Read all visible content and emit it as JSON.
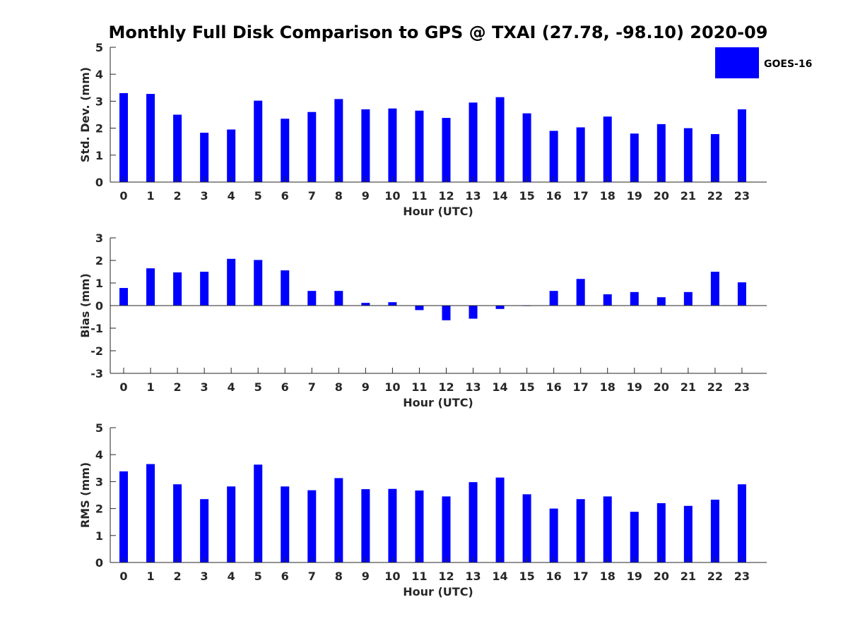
{
  "title": "Monthly Full Disk Comparison to GPS @ TXAI (27.78, -98.10) 2020-09",
  "legend": {
    "label": "GOES-16",
    "color": "#0000ff",
    "placement": "top-right"
  },
  "chart_data": [
    {
      "type": "bar",
      "xlabel": "Hour (UTC)",
      "ylabel": "Std. Dev. (mm)",
      "ylim": [
        0,
        5
      ],
      "yticks": [
        "0",
        "1",
        "2",
        "3",
        "4",
        "5"
      ],
      "categories": [
        "0",
        "1",
        "2",
        "3",
        "4",
        "5",
        "6",
        "7",
        "8",
        "9",
        "10",
        "11",
        "12",
        "13",
        "14",
        "15",
        "16",
        "17",
        "18",
        "19",
        "20",
        "21",
        "22",
        "23"
      ],
      "series": [
        {
          "name": "GOES-16",
          "color": "#0000ff",
          "values": [
            3.3,
            3.27,
            2.5,
            1.83,
            1.95,
            3.02,
            2.35,
            2.6,
            3.08,
            2.7,
            2.73,
            2.65,
            2.38,
            2.95,
            3.15,
            2.55,
            1.9,
            2.03,
            2.43,
            1.8,
            2.15,
            2.0,
            1.78,
            2.7
          ]
        }
      ]
    },
    {
      "type": "bar",
      "xlabel": "Hour (UTC)",
      "ylabel": "Bias (mm)",
      "ylim": [
        -3,
        3
      ],
      "yticks": [
        "-3",
        "-2",
        "-1",
        "0",
        "1",
        "2",
        "3"
      ],
      "categories": [
        "0",
        "1",
        "2",
        "3",
        "4",
        "5",
        "6",
        "7",
        "8",
        "9",
        "10",
        "11",
        "12",
        "13",
        "14",
        "15",
        "16",
        "17",
        "18",
        "19",
        "20",
        "21",
        "22",
        "23"
      ],
      "series": [
        {
          "name": "GOES-16",
          "color": "#0000ff",
          "values": [
            0.78,
            1.65,
            1.47,
            1.5,
            2.07,
            2.02,
            1.56,
            0.65,
            0.65,
            0.12,
            0.15,
            -0.2,
            -0.65,
            -0.58,
            -0.15,
            -0.02,
            0.65,
            1.18,
            0.5,
            0.6,
            0.37,
            0.6,
            1.5,
            1.03
          ]
        }
      ]
    },
    {
      "type": "bar",
      "xlabel": "Hour (UTC)",
      "ylabel": "RMS (mm)",
      "ylim": [
        0,
        5
      ],
      "yticks": [
        "0",
        "1",
        "2",
        "3",
        "4",
        "5"
      ],
      "categories": [
        "0",
        "1",
        "2",
        "3",
        "4",
        "5",
        "6",
        "7",
        "8",
        "9",
        "10",
        "11",
        "12",
        "13",
        "14",
        "15",
        "16",
        "17",
        "18",
        "19",
        "20",
        "21",
        "22",
        "23"
      ],
      "series": [
        {
          "name": "GOES-16",
          "color": "#0000ff",
          "values": [
            3.38,
            3.65,
            2.9,
            2.35,
            2.82,
            3.63,
            2.82,
            2.68,
            3.13,
            2.72,
            2.73,
            2.67,
            2.45,
            2.98,
            3.15,
            2.53,
            2.0,
            2.35,
            2.45,
            1.88,
            2.2,
            2.1,
            2.33,
            2.9
          ]
        }
      ]
    }
  ]
}
